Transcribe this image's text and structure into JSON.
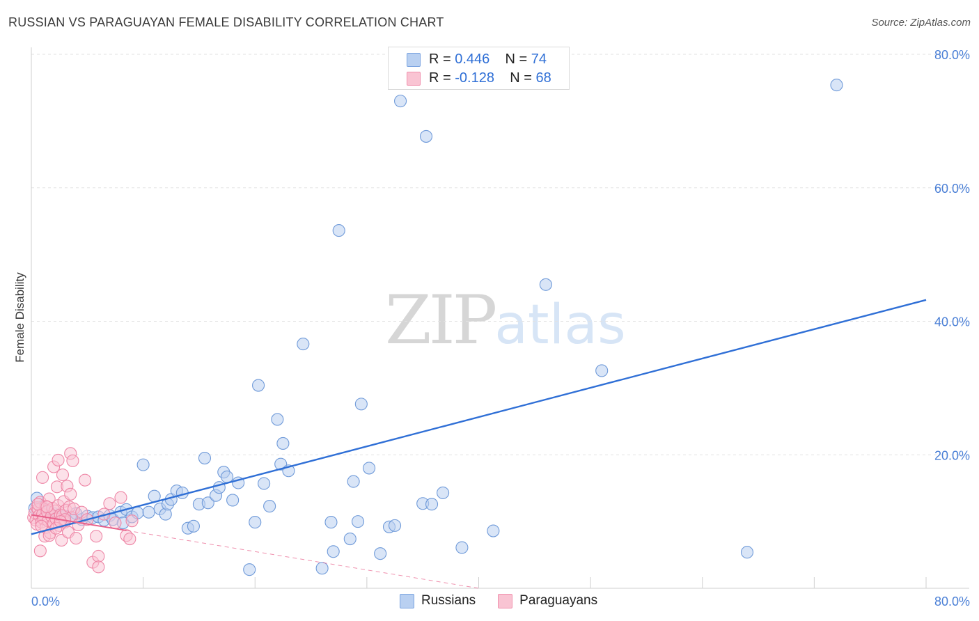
{
  "header": {
    "title": "RUSSIAN VS PARAGUAYAN FEMALE DISABILITY CORRELATION CHART",
    "source": "Source: ZipAtlas.com"
  },
  "watermark": {
    "zip": "ZIP",
    "atlas": "atlas"
  },
  "legend": {
    "rows": [
      {
        "r_label": "R = ",
        "r_value": "0.446",
        "n_label": "N = ",
        "n_value": "74",
        "fill": "#b9d0f1",
        "stroke": "#7aa3e0"
      },
      {
        "r_label": "R = ",
        "r_value": "-0.128",
        "n_label": "N = ",
        "n_value": "68",
        "fill": "#f9c4d3",
        "stroke": "#f08fac"
      }
    ]
  },
  "bottom_legend": {
    "items": [
      {
        "label": "Russians",
        "fill": "#b9d0f1",
        "stroke": "#7aa3e0"
      },
      {
        "label": "Paraguayans",
        "fill": "#f9c4d3",
        "stroke": "#f08fac"
      }
    ]
  },
  "chart_data": {
    "type": "scatter",
    "title": "RUSSIAN VS PARAGUAYAN FEMALE DISABILITY CORRELATION CHART",
    "xlabel": "",
    "ylabel": "Female Disability",
    "xlim": [
      0,
      80
    ],
    "ylim": [
      0,
      80
    ],
    "x_tick_labels": [
      "0.0%",
      "80.0%"
    ],
    "y_tick_labels": [
      {
        "value": 20,
        "label": "20.0%"
      },
      {
        "value": 40,
        "label": "40.0%"
      },
      {
        "value": 60,
        "label": "60.0%"
      },
      {
        "value": 80,
        "label": "80.0%"
      }
    ],
    "grid": true,
    "colors": {
      "russians": "#2f6fd6",
      "russians_fill": "#b9d0f1",
      "paraguayans": "#e8608a",
      "paraguayans_fill": "#f9c4d3"
    },
    "series": [
      {
        "name": "Russians",
        "r": 0.446,
        "n": 74,
        "trend": {
          "x": [
            0,
            80
          ],
          "y": [
            8.1,
            43.2
          ]
        },
        "points": [
          [
            0.5,
            13.5
          ],
          [
            1.0,
            12.2
          ],
          [
            1.5,
            11.5
          ],
          [
            2.0,
            11.2
          ],
          [
            2.5,
            11.0
          ],
          [
            3.0,
            10.8
          ],
          [
            3.5,
            10.5
          ],
          [
            4.0,
            11.2
          ],
          [
            4.5,
            10.3
          ],
          [
            5.0,
            10.8
          ],
          [
            5.5,
            10.6
          ],
          [
            6.0,
            10.7
          ],
          [
            6.5,
            10.2
          ],
          [
            7.0,
            10.9
          ],
          [
            7.3,
            10.3
          ],
          [
            8.0,
            11.4
          ],
          [
            8.2,
            9.8
          ],
          [
            8.5,
            11.8
          ],
          [
            9.0,
            10.7
          ],
          [
            9.5,
            11.3
          ],
          [
            10.0,
            18.5
          ],
          [
            10.5,
            11.4
          ],
          [
            11.0,
            13.8
          ],
          [
            11.5,
            11.9
          ],
          [
            12.0,
            11.1
          ],
          [
            12.2,
            12.6
          ],
          [
            12.5,
            13.3
          ],
          [
            13.0,
            14.6
          ],
          [
            13.5,
            14.3
          ],
          [
            14.0,
            9.0
          ],
          [
            14.5,
            9.3
          ],
          [
            15.0,
            12.6
          ],
          [
            15.5,
            19.5
          ],
          [
            15.8,
            12.8
          ],
          [
            16.5,
            13.9
          ],
          [
            16.8,
            15.1
          ],
          [
            17.2,
            17.4
          ],
          [
            17.5,
            16.7
          ],
          [
            18.0,
            13.2
          ],
          [
            18.5,
            15.8
          ],
          [
            19.5,
            2.8
          ],
          [
            20.0,
            9.9
          ],
          [
            20.3,
            30.4
          ],
          [
            20.8,
            15.7
          ],
          [
            21.3,
            12.3
          ],
          [
            22.0,
            25.3
          ],
          [
            22.3,
            18.6
          ],
          [
            22.5,
            21.7
          ],
          [
            23.0,
            17.6
          ],
          [
            24.3,
            36.6
          ],
          [
            26.0,
            3.0
          ],
          [
            26.8,
            9.9
          ],
          [
            27.0,
            5.5
          ],
          [
            27.5,
            53.6
          ],
          [
            28.5,
            7.4
          ],
          [
            28.8,
            16.0
          ],
          [
            29.2,
            10.0
          ],
          [
            29.5,
            27.6
          ],
          [
            30.2,
            18.0
          ],
          [
            31.2,
            5.2
          ],
          [
            32.0,
            9.2
          ],
          [
            32.5,
            9.4
          ],
          [
            33.0,
            73.0
          ],
          [
            35.0,
            12.7
          ],
          [
            35.3,
            67.7
          ],
          [
            35.8,
            12.6
          ],
          [
            36.8,
            14.3
          ],
          [
            38.5,
            6.1
          ],
          [
            41.3,
            8.6
          ],
          [
            46.0,
            45.5
          ],
          [
            51.0,
            32.6
          ],
          [
            64.0,
            5.4
          ],
          [
            72.0,
            75.4
          ],
          [
            0.3,
            12.0
          ]
        ]
      },
      {
        "name": "Paraguayans",
        "r": -0.128,
        "n": 68,
        "trend": {
          "x": [
            0,
            40
          ],
          "y": [
            11.0,
            0.0
          ]
        },
        "points": [
          [
            0.2,
            10.6
          ],
          [
            0.3,
            11.3
          ],
          [
            0.4,
            10.2
          ],
          [
            0.5,
            12.1
          ],
          [
            0.5,
            9.6
          ],
          [
            0.6,
            11.8
          ],
          [
            0.7,
            10.9
          ],
          [
            0.8,
            12.9
          ],
          [
            0.9,
            9.9
          ],
          [
            1.0,
            11.1
          ],
          [
            1.0,
            16.6
          ],
          [
            1.1,
            10.4
          ],
          [
            1.2,
            7.8
          ],
          [
            1.3,
            12.3
          ],
          [
            1.3,
            9.1
          ],
          [
            1.4,
            11.5
          ],
          [
            1.5,
            10.1
          ],
          [
            1.6,
            13.4
          ],
          [
            1.7,
            8.3
          ],
          [
            1.8,
            10.8
          ],
          [
            1.9,
            12.0
          ],
          [
            2.0,
            9.7
          ],
          [
            2.0,
            18.2
          ],
          [
            2.1,
            11.6
          ],
          [
            2.2,
            10.4
          ],
          [
            2.3,
            15.2
          ],
          [
            2.4,
            12.4
          ],
          [
            2.4,
            19.2
          ],
          [
            2.5,
            9.4
          ],
          [
            2.6,
            11.0
          ],
          [
            2.7,
            7.2
          ],
          [
            2.8,
            10.9
          ],
          [
            2.8,
            17.0
          ],
          [
            2.9,
            13.0
          ],
          [
            3.0,
            9.9
          ],
          [
            3.1,
            11.7
          ],
          [
            3.2,
            15.3
          ],
          [
            3.3,
            8.4
          ],
          [
            3.4,
            12.2
          ],
          [
            3.5,
            20.2
          ],
          [
            3.5,
            14.1
          ],
          [
            3.6,
            10.6
          ],
          [
            3.7,
            19.1
          ],
          [
            3.8,
            11.9
          ],
          [
            4.0,
            7.5
          ],
          [
            4.2,
            9.5
          ],
          [
            4.5,
            11.4
          ],
          [
            4.8,
            16.2
          ],
          [
            5.0,
            10.3
          ],
          [
            5.5,
            3.9
          ],
          [
            5.8,
            7.8
          ],
          [
            6.0,
            4.8
          ],
          [
            6.0,
            3.2
          ],
          [
            6.5,
            11.1
          ],
          [
            7.0,
            12.7
          ],
          [
            7.5,
            9.8
          ],
          [
            8.0,
            13.6
          ],
          [
            8.5,
            7.9
          ],
          [
            8.8,
            7.4
          ],
          [
            9.0,
            10.1
          ],
          [
            0.8,
            5.6
          ],
          [
            1.6,
            7.9
          ],
          [
            2.2,
            9.0
          ],
          [
            3.0,
            10.3
          ],
          [
            0.6,
            12.6
          ],
          [
            1.4,
            12.2
          ],
          [
            2.6,
            10.0
          ],
          [
            0.9,
            9.3
          ]
        ]
      }
    ]
  }
}
